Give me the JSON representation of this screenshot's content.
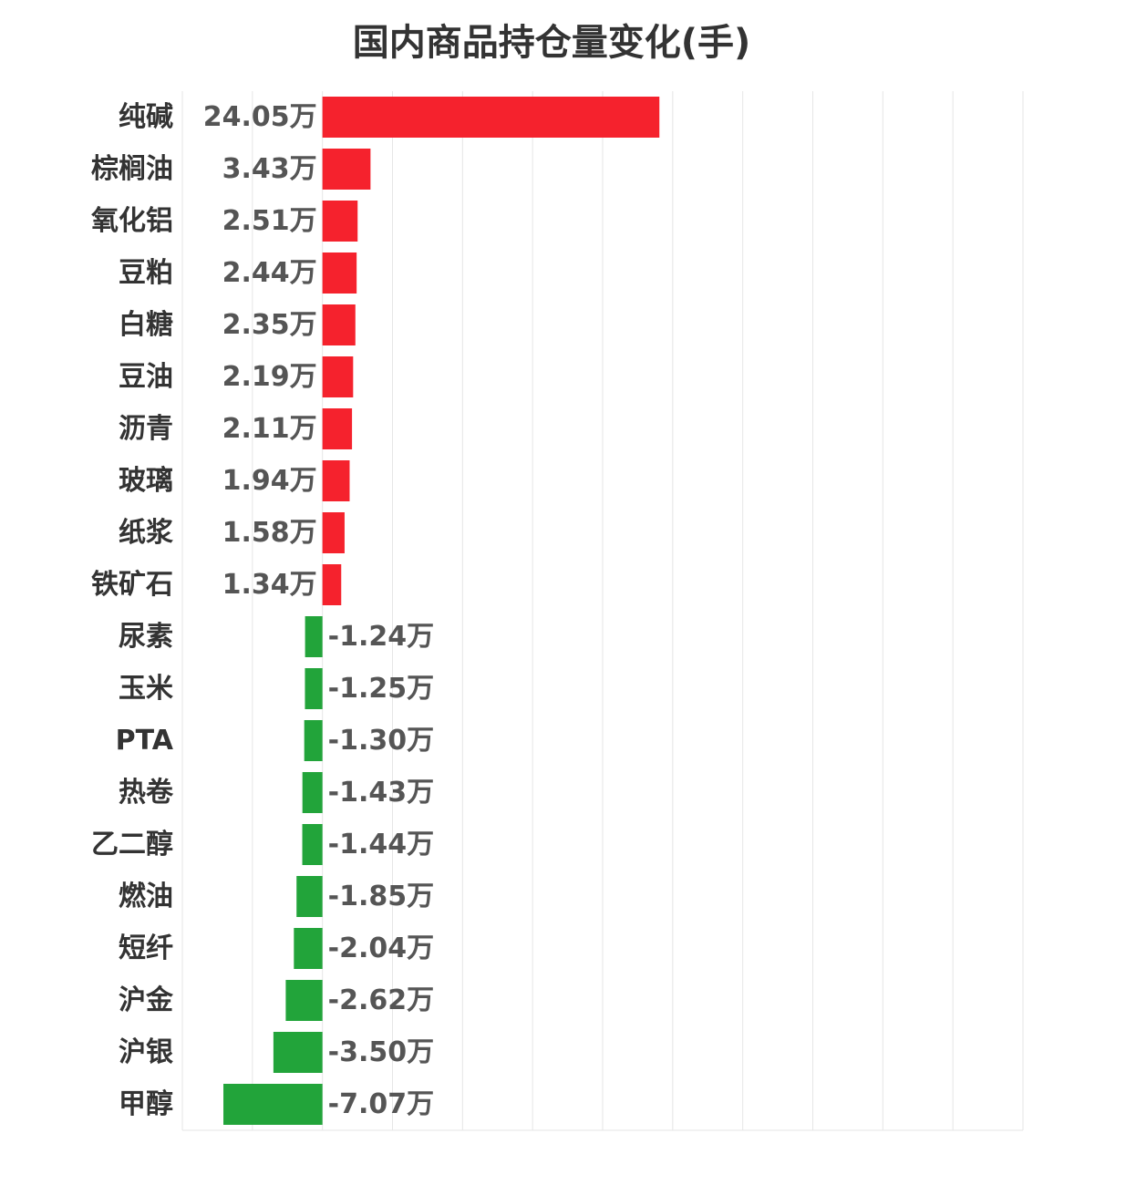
{
  "chart_data": {
    "type": "bar",
    "orientation": "horizontal",
    "title": "国内商品持仓量变化(手)",
    "xlabel": "",
    "ylabel": "",
    "unit_suffix": "万",
    "xlim": [
      -10,
      50
    ],
    "grid": true,
    "categories": [
      "纯碱",
      "棕榈油",
      "氧化铝",
      "豆粕",
      "白糖",
      "豆油",
      "沥青",
      "玻璃",
      "纸浆",
      "铁矿石",
      "尿素",
      "玉米",
      "PTA",
      "热卷",
      "乙二醇",
      "燃油",
      "短纤",
      "沪金",
      "沪银",
      "甲醇"
    ],
    "values": [
      24.05,
      3.43,
      2.51,
      2.44,
      2.35,
      2.19,
      2.11,
      1.94,
      1.58,
      1.34,
      -1.24,
      -1.25,
      -1.3,
      -1.43,
      -1.44,
      -1.85,
      -2.04,
      -2.62,
      -3.5,
      -7.07
    ],
    "labels": [
      "24.05万",
      "3.43万",
      "2.51万",
      "2.44万",
      "2.35万",
      "2.19万",
      "2.11万",
      "1.94万",
      "1.58万",
      "1.34万",
      "-1.24万",
      "-1.25万",
      "-1.30万",
      "-1.43万",
      "-1.44万",
      "-1.85万",
      "-2.04万",
      "-2.62万",
      "-3.50万",
      "-7.07万"
    ],
    "colors": {
      "positive": "#f5222d",
      "negative": "#22a43a",
      "label": "#555555",
      "category": "#333333",
      "grid": "#e6e6e6"
    }
  }
}
